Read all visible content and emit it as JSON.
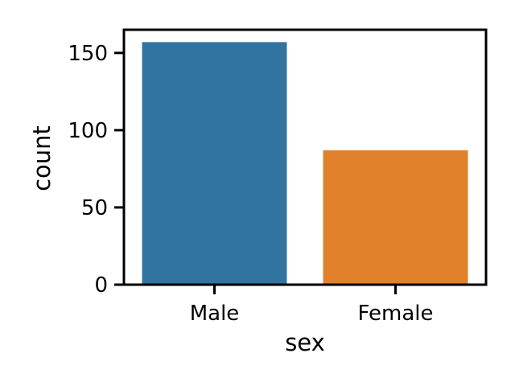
{
  "chart_data": {
    "type": "bar",
    "categories": [
      "Male",
      "Female"
    ],
    "values": [
      157,
      87
    ],
    "colors": [
      "#3274a1",
      "#e1812c"
    ],
    "xlabel": "sex",
    "ylabel": "count",
    "ylim": [
      0,
      165
    ],
    "yticks": [
      0,
      50,
      100,
      150
    ],
    "grid": false
  }
}
